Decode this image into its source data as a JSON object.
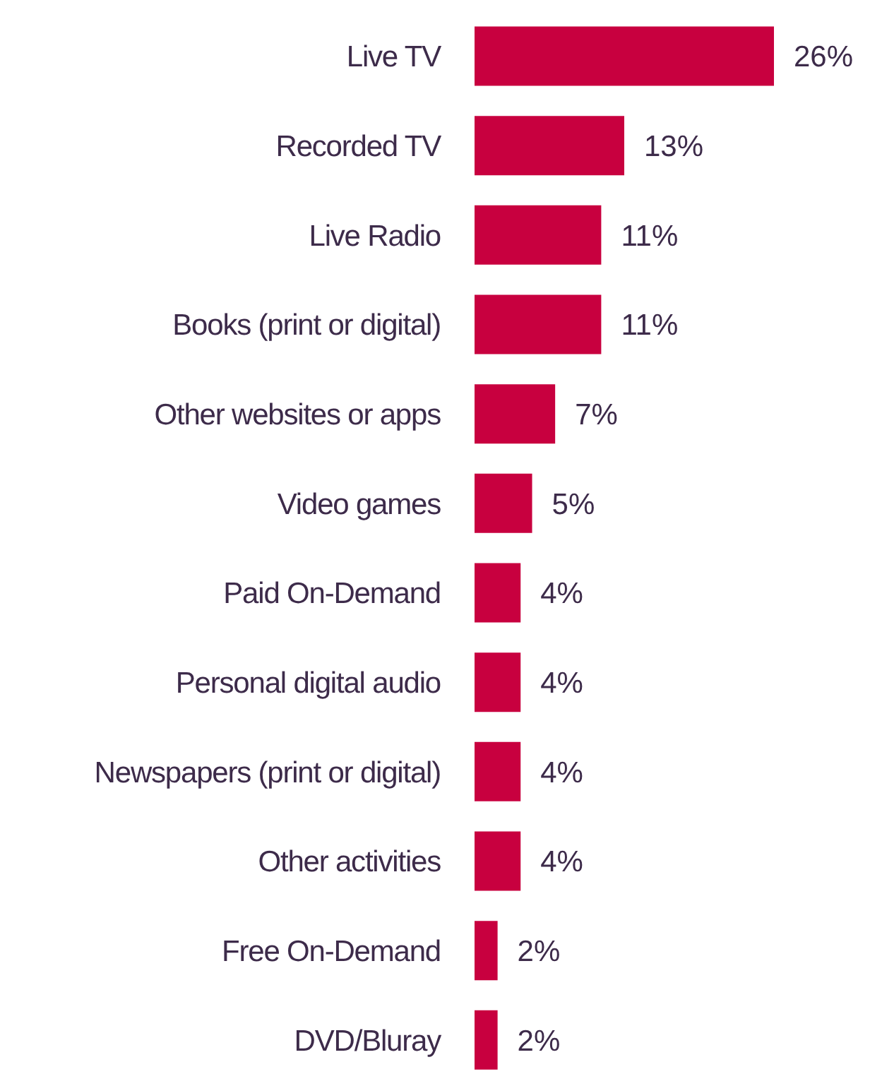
{
  "chart_data": {
    "type": "bar",
    "orientation": "horizontal",
    "categories": [
      "Live TV",
      "Recorded TV",
      "Live Radio",
      "Books (print or digital)",
      "Other websites or apps",
      "Video games",
      "Paid On-Demand",
      "Personal digital audio",
      "Newspapers (print or digital)",
      "Other activities",
      "Free On-Demand",
      "DVD/Bluray"
    ],
    "values": [
      26,
      13,
      11,
      11,
      7,
      5,
      4,
      4,
      4,
      4,
      2,
      2
    ],
    "value_labels": [
      "26%",
      "13%",
      "11%",
      "11%",
      "7%",
      "5%",
      "4%",
      "4%",
      "4%",
      "4%",
      "2%",
      "2%"
    ],
    "color": "#c8003f",
    "grid": false,
    "legend": false
  }
}
